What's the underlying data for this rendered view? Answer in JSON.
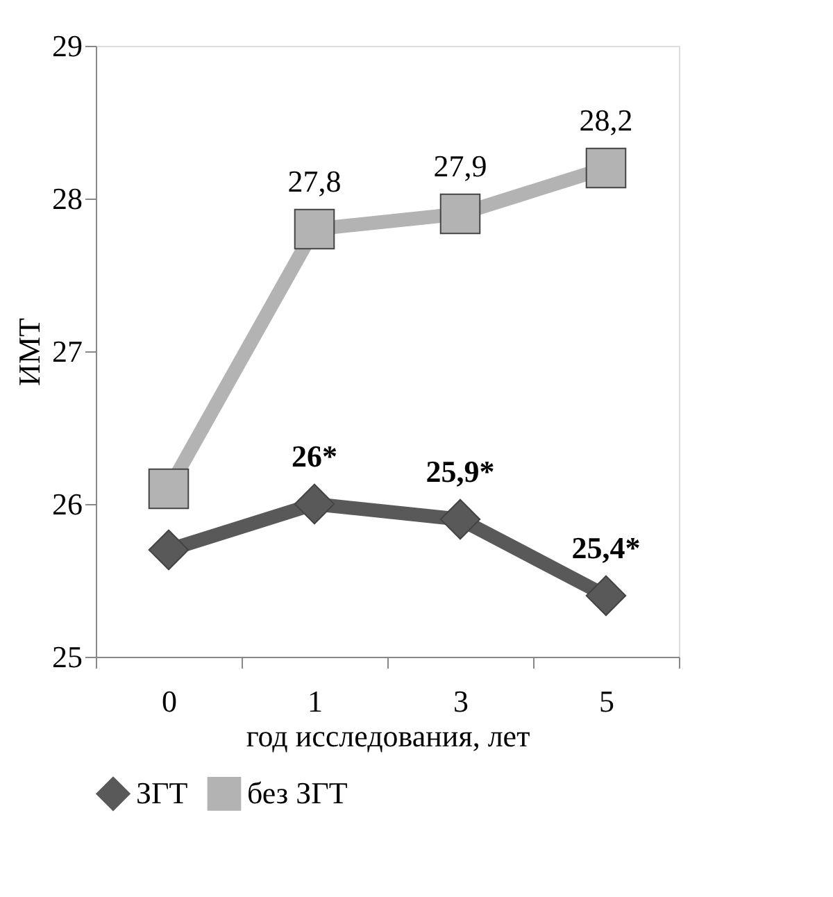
{
  "chart_data": {
    "type": "line",
    "xlabel": "год исследования, лет",
    "ylabel": "ИМТ",
    "categories": [
      "0",
      "1",
      "3",
      "5"
    ],
    "ylim": [
      25,
      29
    ],
    "yticks": [
      25,
      26,
      27,
      28,
      29
    ],
    "grid": false,
    "legend": "bottom",
    "series": [
      {
        "name": "ЗГТ",
        "color": "#595959",
        "marker": "diamond",
        "values": [
          25.7,
          26,
          25.9,
          25.4
        ],
        "value_labels": [
          null,
          "26*",
          "25,9*",
          "25,4*"
        ]
      },
      {
        "name": "без ЗГТ",
        "color": "#b3b3b3",
        "marker": "square",
        "values": [
          26.1,
          27.8,
          27.9,
          28.2
        ],
        "value_labels": [
          null,
          "27,8",
          "27,9",
          "28,2"
        ]
      }
    ]
  }
}
